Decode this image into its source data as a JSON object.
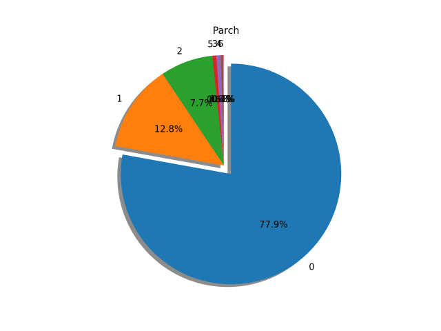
{
  "chart_data": {
    "type": "pie",
    "title": "Parch",
    "shadow": true,
    "start_angle_deg": 90,
    "direction": "clockwise",
    "explode": [
      0.1,
      0,
      0,
      0,
      0,
      0,
      0
    ],
    "slices": [
      {
        "label": "0",
        "value": 77.9,
        "pct_label": "77.9%",
        "color": "#1f77b4"
      },
      {
        "label": "1",
        "value": 12.8,
        "pct_label": "12.8%",
        "color": "#ff7f0e"
      },
      {
        "label": "2",
        "value": 7.7,
        "pct_label": "7.7%",
        "color": "#2ca02c"
      },
      {
        "label": "5",
        "value": 0.6,
        "pct_label": "0.6%",
        "color": "#d62728"
      },
      {
        "label": "3",
        "value": 0.6,
        "pct_label": "0.6%",
        "color": "#9467bd"
      },
      {
        "label": "4",
        "value": 0.4,
        "pct_label": "0.4%",
        "color": "#8c564b"
      },
      {
        "label": "6",
        "value": 0.1,
        "pct_label": "0.1%",
        "color": "#e377c2"
      }
    ]
  }
}
